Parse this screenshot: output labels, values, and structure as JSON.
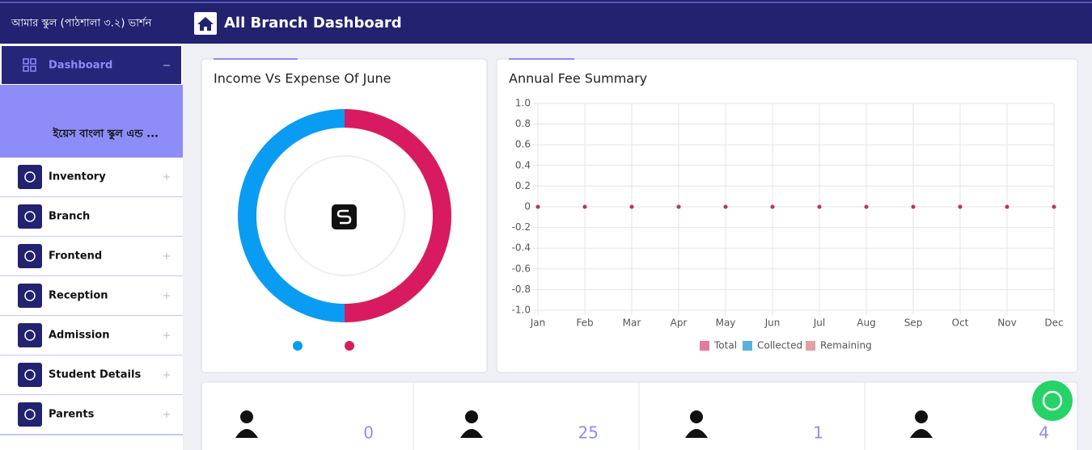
{
  "header": {
    "app_name": "আমার স্কুল (পাঠশালা ৩.২) ভার্শন",
    "title": "All Branch Dashboard"
  },
  "sidebar": {
    "active": "Dashboard",
    "school_name": "ইয়েস বাংলা স্কুল এন্ড ...",
    "menu": [
      {
        "label": "Inventory",
        "expandable": true
      },
      {
        "label": "Branch",
        "expandable": false
      },
      {
        "label": "Frontend",
        "expandable": true
      },
      {
        "label": "Reception",
        "expandable": true
      },
      {
        "label": "Admission",
        "expandable": true
      },
      {
        "label": "Student Details",
        "expandable": true
      },
      {
        "label": "Parents",
        "expandable": true
      }
    ]
  },
  "chart_data": [
    {
      "type": "pie",
      "title": "Income Vs Expense Of June",
      "values": [
        50,
        50
      ],
      "colors": [
        "#0a9cf2",
        "#d81b60"
      ]
    },
    {
      "type": "line",
      "title": "Annual Fee Summary",
      "categories": [
        "Jan",
        "Feb",
        "Mar",
        "Apr",
        "May",
        "Jun",
        "Jul",
        "Aug",
        "Sep",
        "Oct",
        "Nov",
        "Dec"
      ],
      "series": [
        {
          "name": "Total",
          "color": "#e5799f",
          "values": [
            0,
            0,
            0,
            0,
            0,
            0,
            0,
            0,
            0,
            0,
            0,
            0
          ]
        },
        {
          "name": "Collected",
          "color": "#5ab1dd",
          "values": [
            0,
            0,
            0,
            0,
            0,
            0,
            0,
            0,
            0,
            0,
            0,
            0
          ]
        },
        {
          "name": "Remaining",
          "color": "#e0a2a2",
          "values": [
            0,
            0,
            0,
            0,
            0,
            0,
            0,
            0,
            0,
            0,
            0,
            0
          ]
        }
      ],
      "ylim": [
        -1,
        1
      ],
      "yticks": [
        {
          "value": 1,
          "label": "1.0"
        },
        0.8,
        0.6,
        0.4,
        0.2,
        0,
        -0.2,
        -0.4,
        -0.6,
        -0.8,
        {
          "value": -1,
          "label": "-1.0"
        }
      ],
      "grid": true
    }
  ],
  "stats": [
    0,
    25,
    1,
    4
  ]
}
